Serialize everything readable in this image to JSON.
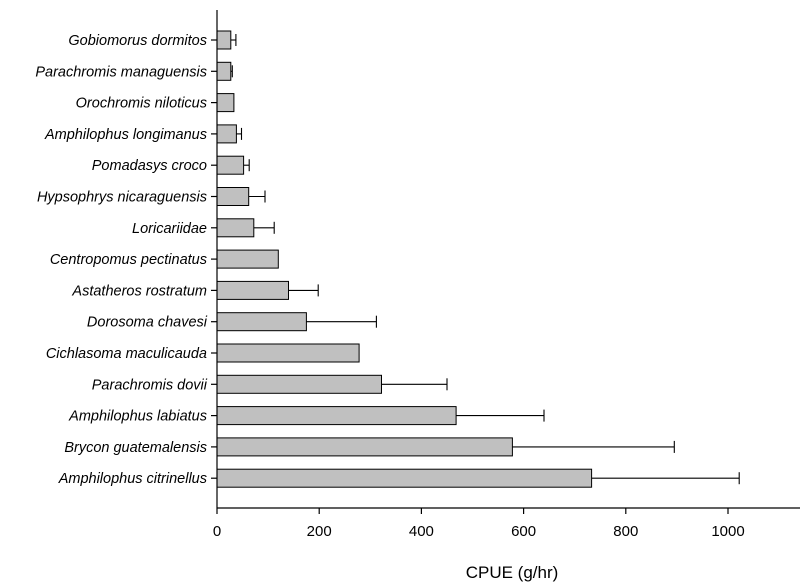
{
  "chart_data": {
    "type": "bar",
    "orientation": "horizontal",
    "title": "",
    "xlabel": "CPUE (g/hr)",
    "ylabel": "",
    "xlim": [
      0,
      1150
    ],
    "xticks": [
      0,
      200,
      400,
      600,
      800,
      1000
    ],
    "grid": false,
    "legend": "none",
    "bar_color": "#c0c0c0",
    "categories": [
      "Gobiomorus dormitos",
      "Parachromis managuensis",
      "Orochromis niloticus",
      "Amphilophus longimanus",
      "Pomadasys croco",
      "Hypsophrys nicaraguensis",
      "Loricariidae",
      "Centropomus pectinatus",
      "Astatheros rostratum",
      "Dorosoma chavesi",
      "Cichlasoma maculicauda",
      "Parachromis dovii",
      "Amphilophus labiatus",
      "Brycon guatemalensis",
      "Amphilophus citrinellus"
    ],
    "values": [
      27,
      27,
      33,
      38,
      52,
      62,
      72,
      120,
      140,
      175,
      278,
      322,
      468,
      578,
      733
    ],
    "error_upper": [
      37,
      30,
      33,
      48,
      63,
      94,
      112,
      120,
      198,
      312,
      278,
      450,
      640,
      895,
      1022
    ]
  }
}
